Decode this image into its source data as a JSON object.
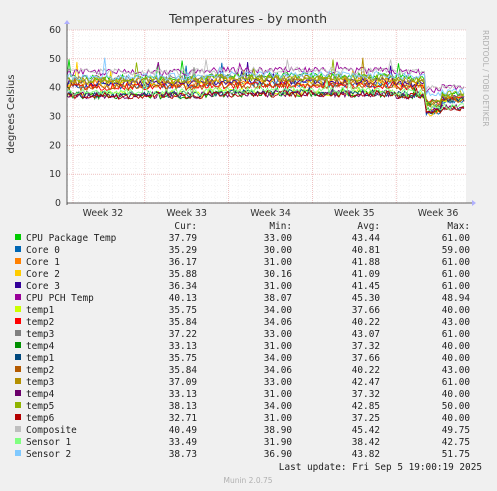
{
  "chart_data": {
    "type": "line",
    "title": "Temperatures - by month",
    "ylabel": "degrees Celsius",
    "ylim": [
      0,
      60
    ],
    "y_ticks": [
      "0",
      "10",
      "20",
      "30",
      "40",
      "50",
      "60"
    ],
    "x_ticks": [
      "Week 32",
      "Week 33",
      "Week 34",
      "Week 35",
      "Week 36"
    ],
    "grid": true,
    "side_text": "RRDTOOL / TOBI OETIKER",
    "legend_headers": {
      "cur": "Cur:",
      "min": "Min:",
      "avg": "Avg:",
      "max": "Max:"
    },
    "series": [
      {
        "name": "CPU Package Temp",
        "color": "#00cc00",
        "cur": "37.79",
        "min": "33.00",
        "avg": "43.44",
        "max": "61.00"
      },
      {
        "name": "Core 0",
        "color": "#0066b3",
        "cur": "35.29",
        "min": "30.00",
        "avg": "40.81",
        "max": "59.00"
      },
      {
        "name": "Core 1",
        "color": "#ff8000",
        "cur": "36.17",
        "min": "31.00",
        "avg": "41.88",
        "max": "61.00"
      },
      {
        "name": "Core 2",
        "color": "#ffcc00",
        "cur": "35.88",
        "min": "30.16",
        "avg": "41.09",
        "max": "61.00"
      },
      {
        "name": "Core 3",
        "color": "#330099",
        "cur": "36.34",
        "min": "31.00",
        "avg": "41.45",
        "max": "61.00"
      },
      {
        "name": "CPU PCH Temp",
        "color": "#990099",
        "cur": "40.13",
        "min": "38.07",
        "avg": "45.30",
        "max": "48.94"
      },
      {
        "name": "temp1",
        "color": "#ccff00",
        "cur": "35.75",
        "min": "34.00",
        "avg": "37.66",
        "max": "40.00"
      },
      {
        "name": "temp2",
        "color": "#ff0000",
        "cur": "35.84",
        "min": "34.06",
        "avg": "40.22",
        "max": "43.00"
      },
      {
        "name": "temp3",
        "color": "#808080",
        "cur": "37.22",
        "min": "33.00",
        "avg": "43.07",
        "max": "61.00"
      },
      {
        "name": "temp4",
        "color": "#008f00",
        "cur": "33.13",
        "min": "31.00",
        "avg": "37.32",
        "max": "40.00"
      },
      {
        "name": "temp1",
        "color": "#00487d",
        "cur": "35.75",
        "min": "34.00",
        "avg": "37.66",
        "max": "40.00"
      },
      {
        "name": "temp2",
        "color": "#b35a00",
        "cur": "35.84",
        "min": "34.06",
        "avg": "40.22",
        "max": "43.00"
      },
      {
        "name": "temp3",
        "color": "#b38f00",
        "cur": "37.09",
        "min": "33.00",
        "avg": "42.47",
        "max": "61.00"
      },
      {
        "name": "temp4",
        "color": "#6b006b",
        "cur": "33.13",
        "min": "31.00",
        "avg": "37.32",
        "max": "40.00"
      },
      {
        "name": "temp5",
        "color": "#8fb300",
        "cur": "38.13",
        "min": "34.00",
        "avg": "42.85",
        "max": "50.00"
      },
      {
        "name": "temp6",
        "color": "#b30000",
        "cur": "32.71",
        "min": "31.00",
        "avg": "37.25",
        "max": "40.00"
      },
      {
        "name": "Composite",
        "color": "#bebebe",
        "cur": "40.49",
        "min": "38.90",
        "avg": "45.42",
        "max": "49.75"
      },
      {
        "name": "Sensor 1",
        "color": "#80ff80",
        "cur": "33.49",
        "min": "31.90",
        "avg": "38.42",
        "max": "42.75"
      },
      {
        "name": "Sensor 2",
        "color": "#80c9ff",
        "cur": "38.73",
        "min": "36.90",
        "avg": "43.82",
        "max": "51.75"
      }
    ],
    "last_update": "Last update: Fri Sep  5 19:00:19 2025",
    "footer": "Munin 2.0.75"
  }
}
